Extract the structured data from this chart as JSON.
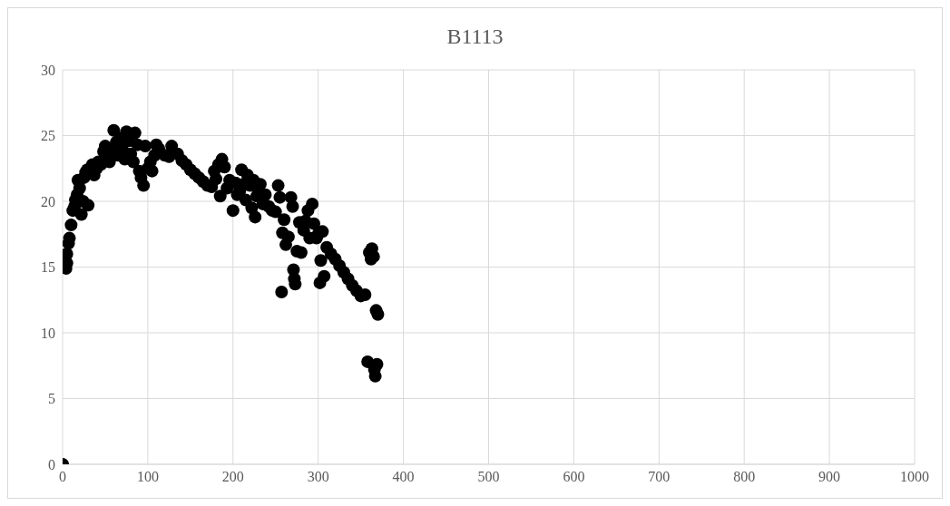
{
  "chart_data": {
    "type": "scatter",
    "title": "B1113",
    "x": [
      0,
      4,
      5,
      5,
      7,
      8,
      10,
      12,
      14,
      15,
      17,
      18,
      20,
      22,
      24,
      25,
      27,
      29,
      30,
      35,
      37,
      40,
      42,
      45,
      48,
      50,
      52,
      55,
      58,
      60,
      63,
      65,
      68,
      70,
      73,
      75,
      78,
      80,
      83,
      85,
      88,
      90,
      92,
      95,
      97,
      100,
      103,
      105,
      108,
      110,
      113,
      120,
      125,
      128,
      135,
      140,
      145,
      150,
      155,
      160,
      165,
      170,
      175,
      178,
      180,
      183,
      185,
      187,
      190,
      193,
      196,
      200,
      203,
      205,
      208,
      210,
      212,
      215,
      217,
      220,
      222,
      224,
      226,
      228,
      230,
      232,
      235,
      238,
      242,
      246,
      250,
      253,
      255,
      257,
      258,
      260,
      262,
      265,
      268,
      270,
      271,
      272,
      273,
      275,
      278,
      280,
      283,
      285,
      288,
      290,
      293,
      295,
      298,
      300,
      302,
      303,
      305,
      307,
      310,
      315,
      320,
      325,
      330,
      335,
      340,
      345,
      350,
      355,
      358,
      360,
      362,
      363,
      365,
      366,
      367,
      368,
      369,
      370
    ],
    "series": [
      {
        "color": "#000000",
        "values": [
          0,
          14.9,
          15.3,
          16,
          16.8,
          17.2,
          18.2,
          19.3,
          19.6,
          20.1,
          20.5,
          21.6,
          21,
          19,
          20,
          21.8,
          22.2,
          22.4,
          19.7,
          22.8,
          22,
          22.5,
          23,
          22.8,
          23.8,
          24.2,
          23.4,
          23,
          24,
          25.4,
          24.5,
          23.5,
          24.8,
          24,
          23.2,
          25.3,
          24.6,
          23.6,
          23,
          25.2,
          24.3,
          22.3,
          21.8,
          21.2,
          24.2,
          22.5,
          23,
          22.3,
          23.5,
          24.3,
          24,
          23.5,
          23.4,
          24.2,
          23.6,
          23.1,
          22.8,
          22.4,
          22.1,
          21.8,
          21.5,
          21.2,
          21.1,
          22.3,
          21.7,
          22.8,
          20.4,
          23.2,
          22.6,
          21,
          21.6,
          19.3,
          21.4,
          20.5,
          20.8,
          22.4,
          21.3,
          20.1,
          22,
          21.2,
          19.5,
          21.6,
          18.8,
          20.4,
          20.9,
          21.3,
          19.8,
          20.5,
          19.6,
          19.3,
          19.2,
          21.2,
          20.3,
          13.1,
          17.6,
          18.6,
          16.7,
          17.3,
          20.3,
          19.6,
          14.8,
          14.1,
          13.7,
          16.2,
          18.4,
          16.1,
          17.8,
          18.5,
          19.3,
          17.2,
          19.8,
          18.3,
          17.2,
          17.5,
          13.8,
          15.5,
          17.7,
          14.3,
          16.5,
          16,
          15.6,
          15.1,
          14.6,
          14.1,
          13.6,
          13.2,
          12.8,
          12.9,
          7.8,
          16.1,
          15.6,
          16.4,
          15.8,
          7.2,
          6.7,
          11.7,
          7.6,
          11.4
        ]
      }
    ],
    "xlim": [
      0,
      1000
    ],
    "xticks": [
      0,
      100,
      200,
      300,
      400,
      500,
      600,
      700,
      800,
      900,
      1000
    ],
    "ylim": [
      0,
      30
    ],
    "yticks": [
      0,
      5,
      10,
      15,
      20,
      25,
      30
    ],
    "grid": true,
    "marker": "circle",
    "legend": false
  }
}
